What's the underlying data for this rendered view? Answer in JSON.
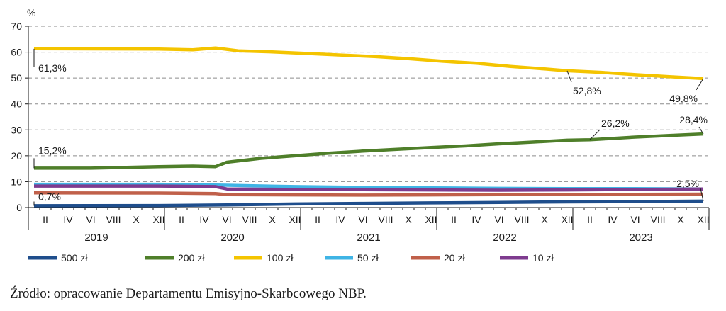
{
  "chart_data": {
    "type": "line",
    "title": "",
    "ylabel": "%",
    "xlabel": "",
    "ylim": [
      0,
      70
    ],
    "yticks": [
      0,
      10,
      20,
      30,
      40,
      50,
      60,
      70
    ],
    "grid": true,
    "legend_position": "bottom",
    "x_tick_labels": [
      "II",
      "IV",
      "VI",
      "VIII",
      "X",
      "XII",
      "II",
      "IV",
      "VI",
      "VIII",
      "X",
      "XII",
      "II",
      "IV",
      "VI",
      "VIII",
      "X",
      "XII",
      "II",
      "IV",
      "VI",
      "VIII",
      "X",
      "XII",
      "II",
      "IV",
      "VI",
      "VIII",
      "X",
      "XII"
    ],
    "years": [
      "2019",
      "2020",
      "2021",
      "2022",
      "2023"
    ],
    "series": [
      {
        "name": "500 zł",
        "color": "#1f4e8c",
        "points": [
          [
            1,
            0.7
          ],
          [
            12,
            0.8
          ],
          [
            18,
            1.0
          ],
          [
            24,
            1.4
          ],
          [
            30,
            1.6
          ],
          [
            36,
            1.8
          ],
          [
            42,
            2.0
          ],
          [
            48,
            2.2
          ],
          [
            54,
            2.3
          ],
          [
            60,
            2.5
          ]
        ]
      },
      {
        "name": "200 zł",
        "color": "#4f7f2a",
        "points": [
          [
            1,
            15.2
          ],
          [
            6,
            15.2
          ],
          [
            12,
            15.8
          ],
          [
            15,
            16.0
          ],
          [
            17,
            15.8
          ],
          [
            18,
            17.5
          ],
          [
            21,
            19.0
          ],
          [
            24,
            20.0
          ],
          [
            27,
            21.0
          ],
          [
            30,
            21.8
          ],
          [
            33,
            22.5
          ],
          [
            36,
            23.2
          ],
          [
            39,
            23.8
          ],
          [
            42,
            24.6
          ],
          [
            45,
            25.3
          ],
          [
            48,
            26.0
          ],
          [
            50,
            26.2
          ],
          [
            54,
            27.2
          ],
          [
            57,
            27.8
          ],
          [
            60,
            28.4
          ]
        ]
      },
      {
        "name": "100 zł",
        "color": "#f4c400",
        "points": [
          [
            1,
            61.3
          ],
          [
            12,
            61.2
          ],
          [
            15,
            60.9
          ],
          [
            17,
            61.6
          ],
          [
            19,
            60.5
          ],
          [
            22,
            60.1
          ],
          [
            25,
            59.5
          ],
          [
            28,
            58.9
          ],
          [
            31,
            58.3
          ],
          [
            34,
            57.5
          ],
          [
            37,
            56.5
          ],
          [
            40,
            55.7
          ],
          [
            43,
            54.5
          ],
          [
            46,
            53.5
          ],
          [
            48,
            52.8
          ],
          [
            51,
            52.2
          ],
          [
            54,
            51.3
          ],
          [
            57,
            50.5
          ],
          [
            60,
            49.8
          ]
        ]
      },
      {
        "name": "50 zł",
        "color": "#3fb4e5",
        "points": [
          [
            1,
            9.0
          ],
          [
            12,
            9.0
          ],
          [
            17,
            8.7
          ],
          [
            18,
            8.6
          ],
          [
            24,
            8.1
          ],
          [
            30,
            7.8
          ],
          [
            36,
            7.6
          ],
          [
            42,
            7.4
          ],
          [
            48,
            7.3
          ],
          [
            54,
            7.3
          ],
          [
            60,
            7.2
          ]
        ]
      },
      {
        "name": "20 zł",
        "color": "#c0604a",
        "points": [
          [
            1,
            5.7
          ],
          [
            12,
            5.6
          ],
          [
            17,
            5.4
          ],
          [
            18,
            5.0
          ],
          [
            24,
            4.9
          ],
          [
            30,
            4.8
          ],
          [
            36,
            4.9
          ],
          [
            42,
            5.0
          ],
          [
            48,
            5.0
          ],
          [
            54,
            5.1
          ],
          [
            60,
            5.2
          ]
        ]
      },
      {
        "name": "10 zł",
        "color": "#7e3b8f",
        "points": [
          [
            1,
            8.3
          ],
          [
            12,
            8.3
          ],
          [
            17,
            8.1
          ],
          [
            18,
            7.2
          ],
          [
            24,
            7.0
          ],
          [
            30,
            6.9
          ],
          [
            36,
            6.8
          ],
          [
            42,
            6.7
          ],
          [
            48,
            6.8
          ],
          [
            54,
            7.0
          ],
          [
            60,
            7.2
          ]
        ]
      }
    ],
    "annotations": [
      {
        "text": "61,3%",
        "x": 1,
        "y": 61.3
      },
      {
        "text": "52,8%",
        "x": 48,
        "y": 52.8
      },
      {
        "text": "49,8%",
        "x": 60,
        "y": 49.8
      },
      {
        "text": "26,2%",
        "x": 50,
        "y": 26.2
      },
      {
        "text": "28,4%",
        "x": 60,
        "y": 28.4
      },
      {
        "text": "15,2%",
        "x": 1,
        "y": 15.2
      },
      {
        "text": "2,5%",
        "x": 60,
        "y": 2.5
      },
      {
        "text": "0,7%",
        "x": 1,
        "y": 0.7
      }
    ]
  },
  "source": "Źródło: opracowanie Departamentu Emisyjno-Skarbcowego NBP."
}
